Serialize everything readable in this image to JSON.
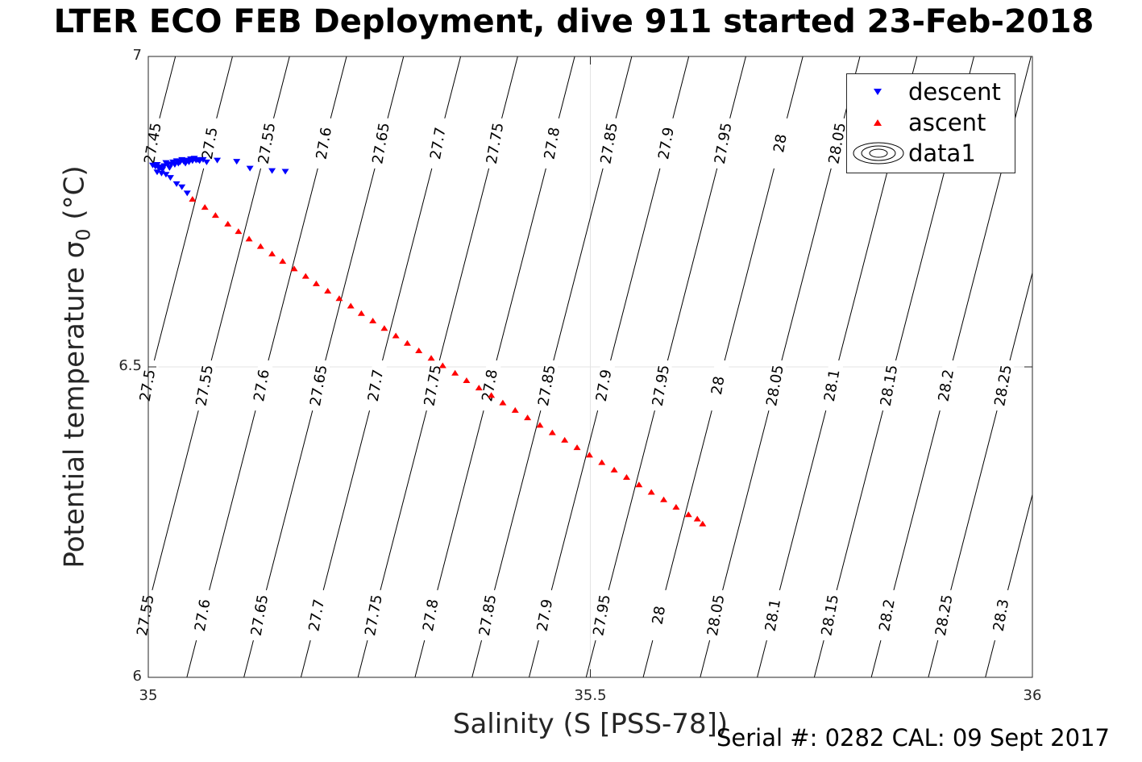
{
  "title": "LTER ECO FEB Deployment, dive 911 started 23-Feb-2018",
  "footer": "Serial #: 0282  CAL: 09 Sept 2017",
  "chart_data": {
    "type": "scatter",
    "xlabel": "Salinity (S [PSS-78])",
    "ylabel": "Potential temperature σ",
    "ylabel_subscript": "0",
    "ylabel_unit": " (°C)",
    "xlim": [
      35,
      36
    ],
    "ylim": [
      6,
      7
    ],
    "xticks": [
      35,
      35.5,
      36
    ],
    "xtick_labels": [
      "35",
      "35.5",
      "36"
    ],
    "yticks": [
      6,
      6.5,
      7
    ],
    "ytick_labels": [
      "6",
      "6.5",
      "7"
    ],
    "grid": true,
    "legend_position": "top-right",
    "legend": [
      {
        "label": "descent",
        "marker": "triangle-down",
        "color": "#0000ff"
      },
      {
        "label": "ascent",
        "marker": "triangle-up",
        "color": "#ff0000"
      },
      {
        "label": "data1",
        "marker": "contour",
        "color": "#000000"
      }
    ],
    "contour_levels": [
      "27.45",
      "27.5",
      "27.55",
      "27.6",
      "27.65",
      "27.7",
      "27.75",
      "27.8",
      "27.85",
      "27.9",
      "27.95",
      "28",
      "28.05",
      "28.1",
      "28.15",
      "28.2",
      "28.25",
      "28.3"
    ],
    "contour_labels": {
      "upper": {
        "y": 6.86,
        "levels": [
          "27.45",
          "27.5",
          "27.55",
          "27.6",
          "27.65",
          "27.7",
          "27.75",
          "27.8",
          "27.85",
          "27.9",
          "27.95",
          "28",
          "28.05"
        ]
      },
      "middle": {
        "y": 6.47,
        "levels": [
          "27.5",
          "27.55",
          "27.6",
          "27.65",
          "27.7",
          "27.75",
          "27.8",
          "27.85",
          "27.9",
          "27.95",
          "28",
          "28.05",
          "28.1",
          "28.15",
          "28.2",
          "28.25"
        ]
      },
      "lower": {
        "y": 6.1,
        "levels": [
          "27.55",
          "27.6",
          "27.65",
          "27.7",
          "27.75",
          "27.8",
          "27.85",
          "27.9",
          "27.95",
          "28",
          "28.05",
          "28.1",
          "28.15",
          "28.2",
          "28.25",
          "28.3"
        ]
      }
    },
    "series": [
      {
        "name": "descent",
        "color": "#0000ff",
        "marker": "triangle-down",
        "points": [
          [
            35.005,
            6.825
          ],
          [
            35.008,
            6.823
          ],
          [
            35.01,
            6.826
          ],
          [
            35.012,
            6.82
          ],
          [
            35.014,
            6.822
          ],
          [
            35.016,
            6.818
          ],
          [
            35.018,
            6.824
          ],
          [
            35.02,
            6.829
          ],
          [
            35.022,
            6.826
          ],
          [
            35.024,
            6.821
          ],
          [
            35.026,
            6.827
          ],
          [
            35.028,
            6.83
          ],
          [
            35.03,
            6.826
          ],
          [
            35.032,
            6.832
          ],
          [
            35.034,
            6.828
          ],
          [
            35.036,
            6.83
          ],
          [
            35.038,
            6.834
          ],
          [
            35.04,
            6.831
          ],
          [
            35.042,
            6.828
          ],
          [
            35.044,
            6.833
          ],
          [
            35.046,
            6.83
          ],
          [
            35.048,
            6.835
          ],
          [
            35.05,
            6.832
          ],
          [
            35.052,
            6.836
          ],
          [
            35.054,
            6.833
          ],
          [
            35.056,
            6.834
          ],
          [
            35.058,
            6.832
          ],
          [
            35.062,
            6.834
          ],
          [
            35.066,
            6.83
          ],
          [
            35.01,
            6.814
          ],
          [
            35.015,
            6.812
          ],
          [
            35.02,
            6.81
          ],
          [
            35.025,
            6.805
          ],
          [
            35.032,
            6.795
          ],
          [
            35.038,
            6.79
          ],
          [
            35.044,
            6.78
          ],
          [
            35.078,
            6.833
          ],
          [
            35.1,
            6.831
          ],
          [
            35.115,
            6.82
          ],
          [
            35.14,
            6.816
          ],
          [
            35.155,
            6.815
          ]
        ]
      },
      {
        "name": "ascent",
        "color": "#ff0000",
        "marker": "triangle-up",
        "points": [
          [
            35.05,
            6.77
          ],
          [
            35.064,
            6.757
          ],
          [
            35.076,
            6.744
          ],
          [
            35.09,
            6.73
          ],
          [
            35.102,
            6.718
          ],
          [
            35.114,
            6.706
          ],
          [
            35.127,
            6.694
          ],
          [
            35.14,
            6.682
          ],
          [
            35.152,
            6.67
          ],
          [
            35.165,
            6.658
          ],
          [
            35.178,
            6.646
          ],
          [
            35.19,
            6.634
          ],
          [
            35.203,
            6.622
          ],
          [
            35.216,
            6.61
          ],
          [
            35.229,
            6.598
          ],
          [
            35.241,
            6.586
          ],
          [
            35.254,
            6.574
          ],
          [
            35.267,
            6.562
          ],
          [
            35.28,
            6.55
          ],
          [
            35.293,
            6.538
          ],
          [
            35.306,
            6.526
          ],
          [
            35.32,
            6.514
          ],
          [
            35.333,
            6.502
          ],
          [
            35.347,
            6.49
          ],
          [
            35.36,
            6.478
          ],
          [
            35.374,
            6.466
          ],
          [
            35.388,
            6.454
          ],
          [
            35.401,
            6.442
          ],
          [
            35.415,
            6.43
          ],
          [
            35.429,
            6.418
          ],
          [
            35.443,
            6.406
          ],
          [
            35.457,
            6.394
          ],
          [
            35.471,
            6.382
          ],
          [
            35.485,
            6.37
          ],
          [
            35.499,
            6.358
          ],
          [
            35.513,
            6.346
          ],
          [
            35.527,
            6.334
          ],
          [
            35.541,
            6.322
          ],
          [
            35.555,
            6.31
          ],
          [
            35.569,
            6.298
          ],
          [
            35.583,
            6.286
          ],
          [
            35.597,
            6.274
          ],
          [
            35.611,
            6.262
          ],
          [
            35.621,
            6.255
          ],
          [
            35.627,
            6.247
          ]
        ]
      }
    ]
  }
}
